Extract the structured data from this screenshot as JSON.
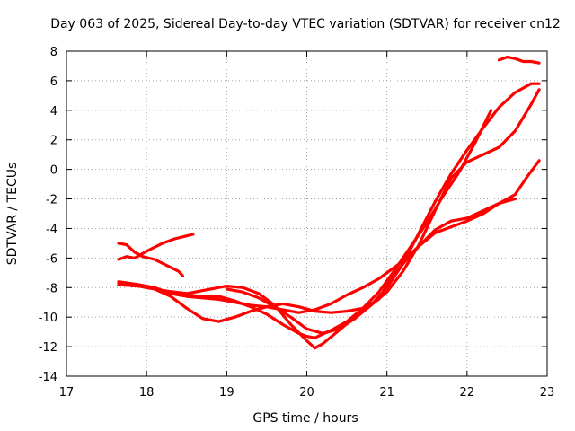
{
  "chart_data": {
    "type": "line",
    "title": "Day 063 of 2025, Sidereal Day-to-day VTEC variation (SDTVAR) for receiver cn12",
    "xlabel": "GPS time / hours",
    "ylabel": "SDTVAR / TECUs",
    "xlim": [
      17,
      23
    ],
    "ylim": [
      -14,
      8
    ],
    "xticks": [
      17,
      18,
      19,
      20,
      21,
      22,
      23
    ],
    "yticks": [
      -14,
      -12,
      -10,
      -8,
      -6,
      -4,
      -2,
      0,
      2,
      4,
      6,
      8
    ],
    "grid": true,
    "color": "#ff0000",
    "series": [
      {
        "name": "trace-1",
        "x": [
          17.65,
          17.75,
          17.85,
          17.95,
          18.05,
          18.2,
          18.35,
          18.5,
          18.58
        ],
        "y": [
          -6.1,
          -5.9,
          -6.0,
          -5.7,
          -5.4,
          -5.0,
          -4.7,
          -4.5,
          -4.4
        ]
      },
      {
        "name": "trace-2",
        "x": [
          17.65,
          17.75,
          17.85,
          17.95,
          18.1,
          18.25,
          18.4,
          18.45
        ],
        "y": [
          -5.0,
          -5.1,
          -5.6,
          -5.9,
          -6.1,
          -6.5,
          -6.9,
          -7.2
        ]
      },
      {
        "name": "trace-3",
        "x": [
          17.65,
          17.9,
          18.1,
          18.3,
          18.5,
          18.7,
          18.9,
          19.1,
          19.3,
          19.5,
          19.7,
          19.9,
          20.1,
          20.3,
          20.5,
          20.7,
          20.9,
          21.0,
          21.2,
          21.4,
          21.6,
          21.8,
          22.0,
          22.2,
          22.4,
          22.6,
          22.75,
          22.9
        ],
        "y": [
          -7.8,
          -7.9,
          -8.1,
          -8.6,
          -9.4,
          -10.1,
          -10.3,
          -10.0,
          -9.6,
          -9.3,
          -9.1,
          -9.3,
          -9.6,
          -9.7,
          -9.6,
          -9.4,
          -8.8,
          -7.8,
          -6.4,
          -5.2,
          -4.1,
          -3.5,
          -3.3,
          -2.8,
          -2.3,
          -1.7,
          -0.5,
          0.6
        ]
      },
      {
        "name": "trace-4",
        "x": [
          17.65,
          17.9,
          18.1,
          18.3,
          18.5,
          18.7,
          18.9,
          19.1,
          19.3,
          19.5,
          19.7,
          19.9,
          20.0,
          20.1,
          20.3,
          20.5,
          20.7,
          20.9,
          21.0,
          21.2,
          21.4,
          21.6,
          21.8,
          22.0,
          22.2,
          22.4,
          22.6
        ],
        "y": [
          -7.6,
          -7.8,
          -8.0,
          -8.4,
          -8.6,
          -8.7,
          -8.8,
          -9.0,
          -9.2,
          -9.3,
          -9.5,
          -9.7,
          -9.6,
          -9.5,
          -9.1,
          -8.5,
          -8.0,
          -7.4,
          -7.0,
          -6.2,
          -5.2,
          -4.3,
          -3.9,
          -3.5,
          -3.0,
          -2.3,
          -2.0
        ]
      },
      {
        "name": "trace-5",
        "x": [
          17.65,
          17.9,
          18.1,
          18.3,
          18.5,
          18.7,
          18.9,
          19.1,
          19.3,
          19.5,
          19.7,
          19.9,
          20.0,
          20.1,
          20.3,
          20.5,
          20.7,
          20.9,
          21.1,
          21.3,
          21.5,
          21.7,
          21.9,
          22.1,
          22.3
        ],
        "y": [
          -7.7,
          -7.9,
          -8.1,
          -8.3,
          -8.5,
          -8.6,
          -8.6,
          -8.9,
          -9.3,
          -9.8,
          -10.5,
          -11.1,
          -11.3,
          -11.4,
          -10.9,
          -10.3,
          -9.4,
          -8.3,
          -6.8,
          -5.2,
          -3.6,
          -1.8,
          -0.2,
          1.8,
          4.0
        ]
      },
      {
        "name": "trace-6",
        "x": [
          17.65,
          17.9,
          18.2,
          18.5,
          18.8,
          19.0,
          19.2,
          19.4,
          19.6,
          19.8,
          20.0,
          20.1,
          20.2,
          20.4,
          20.6,
          20.8,
          21.0,
          21.2,
          21.4,
          21.6,
          21.8,
          22.0,
          22.2,
          22.4,
          22.6,
          22.8,
          22.9
        ],
        "y": [
          -7.8,
          -7.9,
          -8.2,
          -8.4,
          -8.1,
          -7.9,
          -8.0,
          -8.4,
          -9.2,
          -10.5,
          -11.6,
          -12.1,
          -11.8,
          -10.9,
          -10.0,
          -9.2,
          -8.3,
          -6.9,
          -5.1,
          -2.8,
          -0.6,
          0.5,
          1.0,
          1.5,
          2.6,
          4.4,
          5.4
        ]
      },
      {
        "name": "trace-7",
        "x": [
          19.0,
          19.2,
          19.4,
          19.6,
          19.8,
          20.0,
          20.2,
          20.4,
          20.6,
          20.8,
          21.0,
          21.2,
          21.4,
          21.6,
          21.8,
          22.0,
          22.2,
          22.4,
          22.6,
          22.8,
          22.9
        ],
        "y": [
          -8.1,
          -8.3,
          -8.7,
          -9.3,
          -10.0,
          -10.8,
          -11.1,
          -10.8,
          -10.1,
          -9.2,
          -8.0,
          -6.4,
          -4.3,
          -2.2,
          -0.3,
          1.3,
          2.8,
          4.2,
          5.2,
          5.8,
          5.8
        ]
      },
      {
        "name": "trace-8",
        "x": [
          22.4,
          22.5,
          22.6,
          22.7,
          22.8,
          22.9
        ],
        "y": [
          7.4,
          7.6,
          7.5,
          7.3,
          7.3,
          7.2
        ]
      }
    ]
  }
}
